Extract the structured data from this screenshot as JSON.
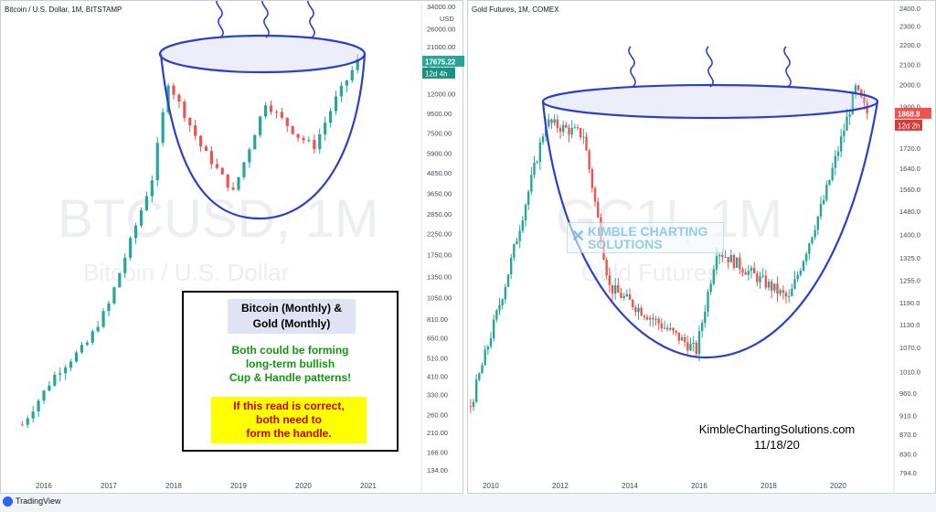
{
  "chart_data": [
    {
      "type": "candlestick",
      "title": "Bitcoin / U.S. Dollar, 1M, BITSTAMP",
      "watermark_symbol": "BTCUSD, 1M",
      "watermark_name": "Bitcoin / U.S. Dollar",
      "y_scale": "log",
      "y_unit": "USD",
      "y_ticks": [
        "34000.00",
        "26000.00",
        "21000.00",
        "17000.00",
        "12000.00",
        "9500.00",
        "7500.00",
        "5900.00",
        "4650.00",
        "3650.00",
        "2850.00",
        "2250.00",
        "1750.00",
        "1350.00",
        "1050.00",
        "810.00",
        "650.00",
        "510.00",
        "410.00",
        "330.00",
        "260.00",
        "210.00",
        "166.00",
        "134.00"
      ],
      "x_ticks": [
        "2016",
        "2017",
        "2018",
        "2019",
        "2020",
        "2021"
      ],
      "last_price": "17675.22",
      "countdown": "12d 4h",
      "pattern": "cup",
      "approx_closes": [
        {
          "date": "2015-09",
          "close": 230
        },
        {
          "date": "2016-03",
          "close": 415
        },
        {
          "date": "2016-09",
          "close": 610
        },
        {
          "date": "2017-01",
          "close": 970
        },
        {
          "date": "2017-06",
          "close": 2480
        },
        {
          "date": "2017-09",
          "close": 4350
        },
        {
          "date": "2017-12",
          "close": 13800
        },
        {
          "date": "2018-06",
          "close": 6400
        },
        {
          "date": "2018-12",
          "close": 3700
        },
        {
          "date": "2019-06",
          "close": 10800
        },
        {
          "date": "2019-12",
          "close": 7200
        },
        {
          "date": "2020-03",
          "close": 6400
        },
        {
          "date": "2020-07",
          "close": 11300
        },
        {
          "date": "2020-11",
          "close": 17675
        }
      ]
    },
    {
      "type": "candlestick",
      "title": "Gold Futures, 1M, COMEX",
      "watermark_symbol": "GC1!, 1M",
      "watermark_name": "Gold Futures",
      "y_scale": "log",
      "y_ticks": [
        "2400.0",
        "2300.0",
        "2200.0",
        "2100.0",
        "2000.0",
        "1900.0",
        "1810.0",
        "1720.0",
        "1640.0",
        "1560.0",
        "1480.0",
        "1400.0",
        "1325.0",
        "1255.0",
        "1190.0",
        "1130.0",
        "1070.0",
        "1010.0",
        "960.0",
        "910.0",
        "870.0",
        "830.0",
        "794.0"
      ],
      "x_ticks": [
        "2010",
        "2012",
        "2014",
        "2016",
        "2018",
        "2020"
      ],
      "last_price": "1868.8",
      "countdown": "12d 2h",
      "pattern": "cup",
      "approx_closes": [
        {
          "date": "2009-06",
          "close": 930
        },
        {
          "date": "2010-06",
          "close": 1245
        },
        {
          "date": "2011-08",
          "close": 1830
        },
        {
          "date": "2012-09",
          "close": 1775
        },
        {
          "date": "2013-06",
          "close": 1235
        },
        {
          "date": "2015-12",
          "close": 1062
        },
        {
          "date": "2016-07",
          "close": 1350
        },
        {
          "date": "2018-08",
          "close": 1200
        },
        {
          "date": "2019-08",
          "close": 1520
        },
        {
          "date": "2020-07",
          "close": 1980
        },
        {
          "date": "2020-11",
          "close": 1869
        }
      ]
    }
  ],
  "annotation": {
    "title_line1": "Bitcoin (Monthly) &",
    "title_line2": "Gold (Monthly)",
    "green_line1": "Both could be forming",
    "green_line2": "long-term bullish",
    "green_line3": "Cup & Handle patterns!",
    "yellow_line1": "If this read is correct,",
    "yellow_line2": "both need to",
    "yellow_line3": "form the handle."
  },
  "credit": {
    "site": "KimbleChartingSolutions.com",
    "date": "11/18/20"
  },
  "logo": {
    "line1": "KIMBLE CHARTING",
    "line2": "SOLUTIONS"
  },
  "footer": {
    "brand": "TradingView"
  },
  "colors": {
    "up": "#26a69a",
    "down": "#ef5350",
    "cup": "#2b3fc7",
    "cup_fill": "#c8d1f0",
    "price_tag": "#26a69a",
    "gold_tag": "#ef5350"
  }
}
